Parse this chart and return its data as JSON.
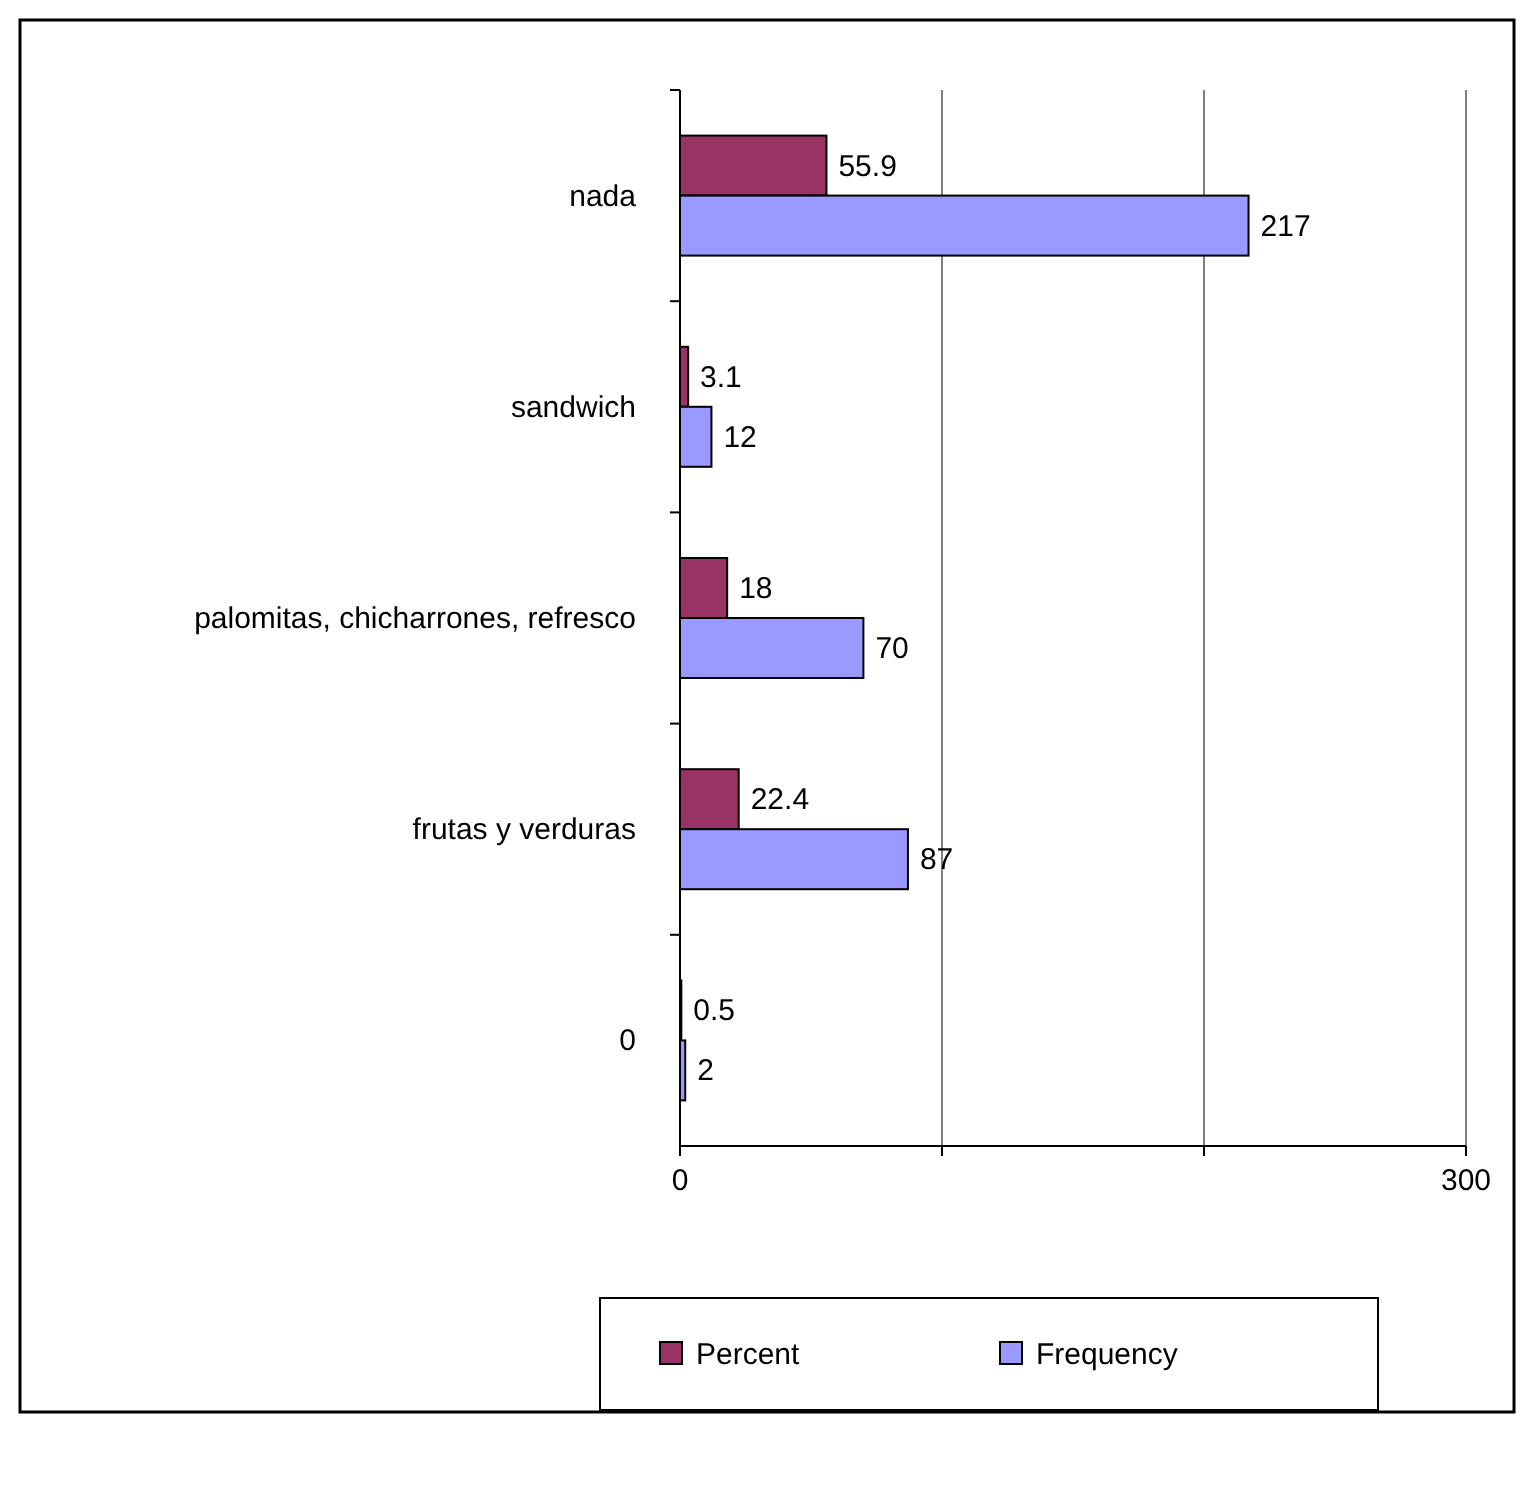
{
  "chart_data": {
    "type": "bar",
    "orientation": "horizontal",
    "categories": [
      "nada",
      "sandwich",
      "palomitas, chicharrones, refresco",
      "frutas y verduras",
      "0"
    ],
    "series": [
      {
        "name": "Percent",
        "color": "#993366",
        "values": [
          55.9,
          3.1,
          18,
          22.4,
          0.5
        ]
      },
      {
        "name": "Frequency",
        "color": "#9999ff",
        "values": [
          217,
          12,
          70,
          87,
          2
        ]
      }
    ],
    "xlim": [
      0,
      300
    ],
    "xticks": [
      0,
      {
        "value": 100,
        "label": null
      },
      {
        "value": 200,
        "label": null
      },
      300
    ],
    "grid": "x",
    "legend": "bottom",
    "data_labels": true
  }
}
